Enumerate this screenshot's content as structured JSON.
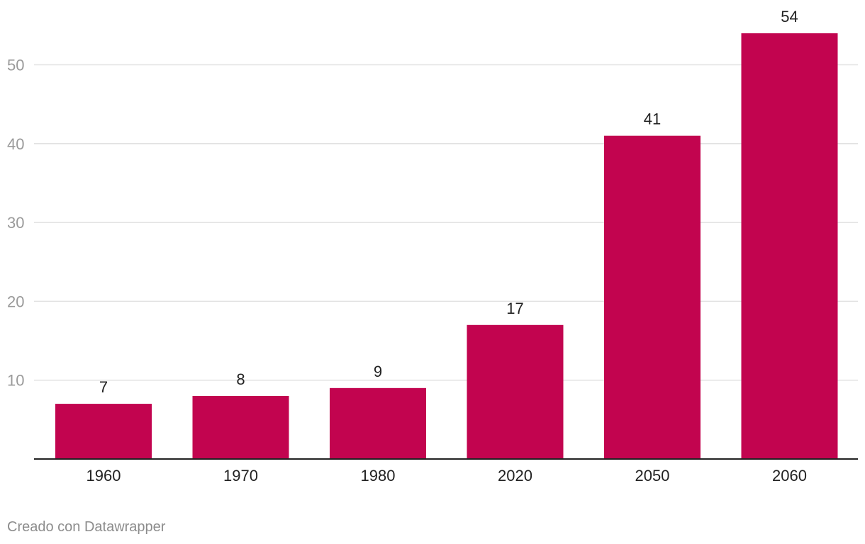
{
  "chart_data": {
    "type": "bar",
    "categories": [
      "1960",
      "1970",
      "1980",
      "2020",
      "2050",
      "2060"
    ],
    "values": [
      7,
      8,
      9,
      17,
      41,
      54
    ],
    "yticks": [
      "10",
      "20",
      "30",
      "40",
      "50"
    ],
    "ylim": [
      0,
      54
    ],
    "grid": true,
    "bar_color": "#c2044f",
    "title": "",
    "xlabel": "",
    "ylabel": ""
  },
  "footer": {
    "credit": "Creado con Datawrapper"
  }
}
